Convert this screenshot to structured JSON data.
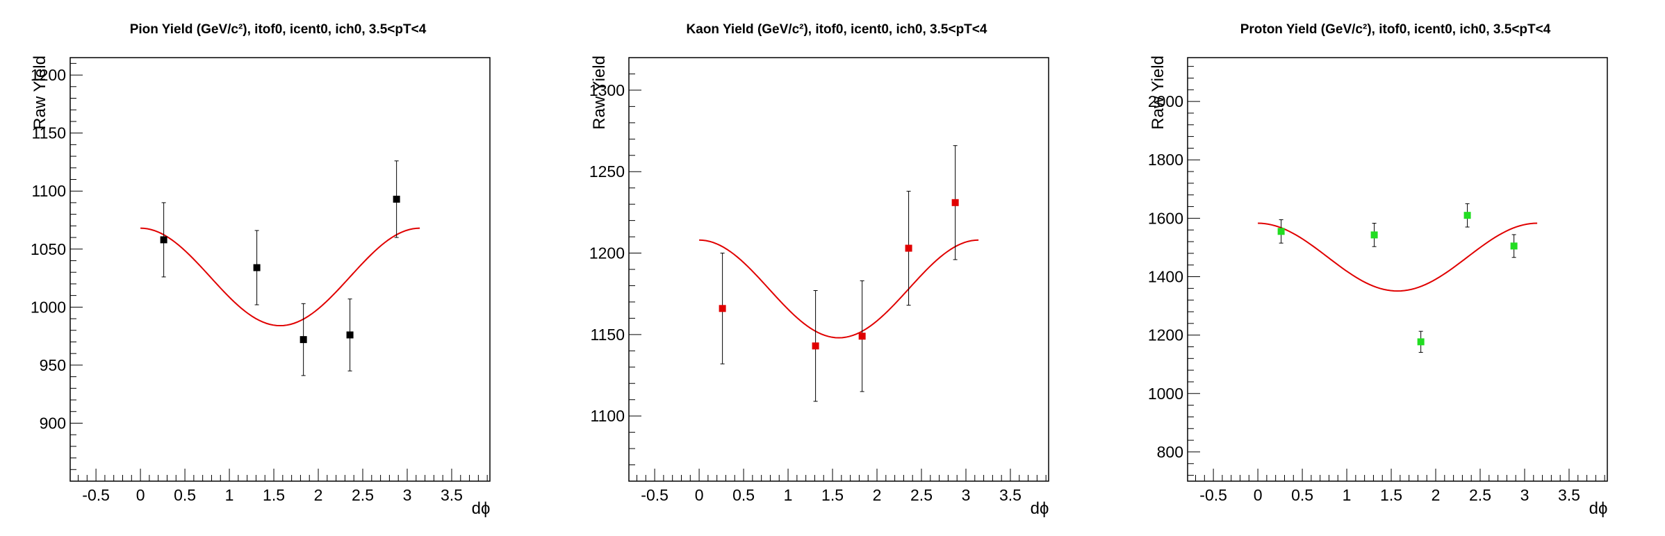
{
  "chart_data": [
    {
      "type": "scatter",
      "title": "Pion Yield (GeV/c²), itof0, icent0, ich0, 3.5<pT<4",
      "xlabel": "dϕ",
      "ylabel": "Raw Yield",
      "xlim": [
        -0.79,
        3.93
      ],
      "ylim": [
        850,
        1215
      ],
      "xticks": [
        -0.5,
        0,
        0.5,
        1,
        1.5,
        2,
        2.5,
        3,
        3.5
      ],
      "xtick_labels": [
        "-0.5",
        "0",
        "0.5",
        "1",
        "1.5",
        "2",
        "2.5",
        "3",
        "3.5"
      ],
      "yticks": [
        900,
        950,
        1000,
        1050,
        1100,
        1150,
        1200
      ],
      "ytick_labels": [
        "900",
        "950",
        "1000",
        "1050",
        "1100",
        "1150",
        "1200"
      ],
      "marker_color": "#000000",
      "fit_color": "#e00000",
      "points": [
        {
          "x": 0.262,
          "y": 1058,
          "err": 32
        },
        {
          "x": 1.309,
          "y": 1034,
          "err": 32
        },
        {
          "x": 1.833,
          "y": 972,
          "err": 31
        },
        {
          "x": 2.356,
          "y": 976,
          "err": 31
        },
        {
          "x": 2.88,
          "y": 1093,
          "err": 33
        }
      ],
      "fit": {
        "function": "a + b*cos(2x)",
        "a": 1026,
        "b": 42,
        "x_range": [
          0,
          3.1416
        ]
      }
    },
    {
      "type": "scatter",
      "title": "Kaon Yield (GeV/c²), itof0, icent0, ich0, 3.5<pT<4",
      "xlabel": "dϕ",
      "ylabel": "Raw Yield",
      "xlim": [
        -0.79,
        3.93
      ],
      "ylim": [
        1060,
        1320
      ],
      "xticks": [
        -0.5,
        0,
        0.5,
        1,
        1.5,
        2,
        2.5,
        3,
        3.5
      ],
      "xtick_labels": [
        "-0.5",
        "0",
        "0.5",
        "1",
        "1.5",
        "2",
        "2.5",
        "3",
        "3.5"
      ],
      "yticks": [
        1100,
        1150,
        1200,
        1250,
        1300
      ],
      "ytick_labels": [
        "1100",
        "1150",
        "1200",
        "1250",
        "1300"
      ],
      "marker_color": "#e00000",
      "fit_color": "#e00000",
      "points": [
        {
          "x": 0.262,
          "y": 1166,
          "err": 34
        },
        {
          "x": 1.309,
          "y": 1143,
          "err": 34
        },
        {
          "x": 1.833,
          "y": 1149,
          "err": 34
        },
        {
          "x": 2.356,
          "y": 1203,
          "err": 35
        },
        {
          "x": 2.88,
          "y": 1231,
          "err": 35
        }
      ],
      "fit": {
        "function": "a + b*cos(2x)",
        "a": 1178,
        "b": 30,
        "x_range": [
          0,
          3.1416
        ]
      }
    },
    {
      "type": "scatter",
      "title": "Proton Yield (GeV/c²), itof0, icent0, ich0, 3.5<pT<4",
      "xlabel": "dϕ",
      "ylabel": "Raw Yield",
      "xlim": [
        -0.79,
        3.93
      ],
      "ylim": [
        700,
        2150
      ],
      "xticks": [
        -0.5,
        0,
        0.5,
        1,
        1.5,
        2,
        2.5,
        3,
        3.5
      ],
      "xtick_labels": [
        "-0.5",
        "0",
        "0.5",
        "1",
        "1.5",
        "2",
        "2.5",
        "3",
        "3.5"
      ],
      "yticks": [
        800,
        1000,
        1200,
        1400,
        1600,
        1800,
        2000
      ],
      "ytick_labels": [
        "800",
        "1000",
        "1200",
        "1400",
        "1600",
        "1800",
        "2000"
      ],
      "marker_color": "#22dd22",
      "fit_color": "#e00000",
      "points": [
        {
          "x": 0.262,
          "y": 1555,
          "err": 40
        },
        {
          "x": 1.309,
          "y": 1543,
          "err": 40
        },
        {
          "x": 1.833,
          "y": 1177,
          "err": 36
        },
        {
          "x": 2.356,
          "y": 1610,
          "err": 40
        },
        {
          "x": 2.88,
          "y": 1505,
          "err": 39
        }
      ],
      "fit": {
        "function": "a + b*cos(2x)",
        "a": 1467,
        "b": 116,
        "x_range": [
          0,
          3.1416
        ]
      }
    }
  ]
}
